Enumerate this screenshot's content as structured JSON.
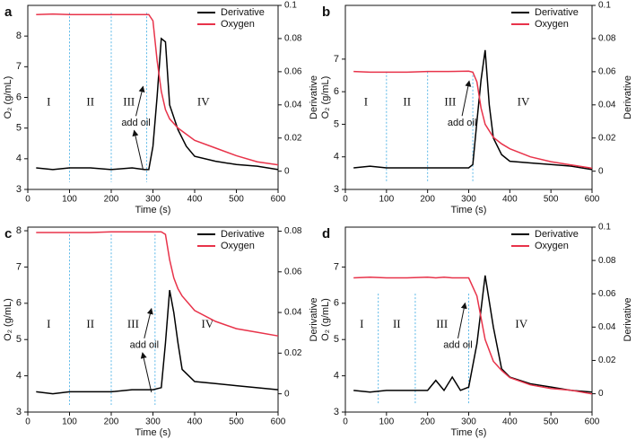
{
  "chart_data": [
    {
      "type": "line",
      "panel": "a",
      "x_label": "Time (s)",
      "y_label": "O₂ (g/mL)",
      "y2_label": "Derivative",
      "xlim": [
        0,
        600
      ],
      "xticks": [
        0,
        100,
        200,
        300,
        400,
        500,
        600
      ],
      "ylim": [
        3,
        9
      ],
      "yticks": [
        3,
        4,
        5,
        6,
        7,
        8
      ],
      "y2lim": [
        -0.011,
        0.1
      ],
      "y2ticks": [
        0,
        0.02,
        0.04,
        0.06,
        0.08,
        0.1
      ],
      "phase_lines": [
        100,
        200,
        285
      ],
      "phases": [
        "I",
        "II",
        "III",
        "IV"
      ],
      "annotation": "add oil",
      "x": [
        20,
        60,
        100,
        150,
        200,
        250,
        280,
        290,
        300,
        310,
        320,
        330,
        340,
        360,
        380,
        400,
        450,
        500,
        550,
        600
      ],
      "series": [
        {
          "name": "Derivative",
          "color": "#000000",
          "axis": "y2",
          "values": [
            0.002,
            0.001,
            0.002,
            0.002,
            0.001,
            0.002,
            0.001,
            0.001,
            0.015,
            0.045,
            0.08,
            0.078,
            0.04,
            0.025,
            0.015,
            0.009,
            0.006,
            0.004,
            0.003,
            0.001
          ]
        },
        {
          "name": "Oxygen",
          "color": "#e8334a",
          "values": [
            8.7,
            8.72,
            8.7,
            8.7,
            8.7,
            8.7,
            8.7,
            8.7,
            8.5,
            7.2,
            6.2,
            5.6,
            5.3,
            5.0,
            4.8,
            4.6,
            4.35,
            4.1,
            3.9,
            3.8
          ]
        }
      ]
    },
    {
      "type": "line",
      "panel": "b",
      "x_label": "Time (s)",
      "y_label": "O₂ (g/mL)",
      "y2_label": "Derivative",
      "xlim": [
        0,
        600
      ],
      "xticks": [
        0,
        100,
        200,
        300,
        400,
        500,
        600
      ],
      "ylim": [
        3,
        8.65
      ],
      "yticks": [
        3,
        4,
        5,
        6,
        7
      ],
      "y2lim": [
        -0.011,
        0.1
      ],
      "y2ticks": [
        0,
        0.02,
        0.04,
        0.06,
        0.08,
        0.1
      ],
      "phase_lines": [
        100,
        200,
        310
      ],
      "phases": [
        "I",
        "II",
        "III",
        "IV"
      ],
      "annotation": "add oil",
      "x": [
        20,
        60,
        100,
        150,
        200,
        250,
        300,
        310,
        320,
        330,
        340,
        350,
        360,
        380,
        400,
        450,
        500,
        550,
        600
      ],
      "series": [
        {
          "name": "Derivative",
          "color": "#000000",
          "axis": "y2",
          "values": [
            0.002,
            0.003,
            0.002,
            0.002,
            0.002,
            0.002,
            0.002,
            0.004,
            0.03,
            0.055,
            0.073,
            0.04,
            0.02,
            0.01,
            0.006,
            0.005,
            0.004,
            0.003,
            0.001
          ]
        },
        {
          "name": "Oxygen",
          "color": "#e8334a",
          "values": [
            6.62,
            6.6,
            6.6,
            6.6,
            6.62,
            6.62,
            6.63,
            6.6,
            6.3,
            5.5,
            5.0,
            4.8,
            4.6,
            4.4,
            4.25,
            4.0,
            3.85,
            3.75,
            3.65
          ]
        }
      ]
    },
    {
      "type": "line",
      "panel": "c",
      "x_label": "Time (s)",
      "y_label": "O₂ (g/mL)",
      "y2_label": "Derivative",
      "xlim": [
        0,
        600
      ],
      "xticks": [
        0,
        100,
        200,
        300,
        400,
        500,
        600
      ],
      "ylim": [
        3,
        8.1
      ],
      "yticks": [
        3,
        4,
        5,
        6,
        7,
        8
      ],
      "y2lim": [
        -0.009,
        0.082
      ],
      "y2ticks": [
        0,
        0.02,
        0.04,
        0.06,
        0.08
      ],
      "phase_lines": [
        100,
        200,
        305
      ],
      "phases": [
        "I",
        "II",
        "III",
        "IV"
      ],
      "annotation": "add oil",
      "x": [
        20,
        60,
        100,
        150,
        200,
        250,
        300,
        320,
        330,
        340,
        350,
        360,
        370,
        400,
        450,
        500,
        550,
        600
      ],
      "series": [
        {
          "name": "Derivative",
          "color": "#000000",
          "axis": "y2",
          "values": [
            0.001,
            0.0,
            0.001,
            0.001,
            0.001,
            0.002,
            0.002,
            0.003,
            0.025,
            0.051,
            0.04,
            0.025,
            0.012,
            0.006,
            0.005,
            0.004,
            0.003,
            0.002
          ]
        },
        {
          "name": "Oxygen",
          "color": "#e8334a",
          "values": [
            7.95,
            7.95,
            7.95,
            7.95,
            7.97,
            7.97,
            7.97,
            7.97,
            7.9,
            7.2,
            6.7,
            6.4,
            6.2,
            5.8,
            5.5,
            5.3,
            5.2,
            5.1
          ]
        }
      ]
    },
    {
      "type": "line",
      "panel": "d",
      "x_label": "Time (s)",
      "y_label": "O₂ (g/mL)",
      "y2_label": "Derivative",
      "xlim": [
        0,
        600
      ],
      "xticks": [
        0,
        100,
        200,
        300,
        400,
        500,
        600
      ],
      "ylim": [
        3,
        8.1
      ],
      "yticks": [
        3,
        4,
        5,
        6,
        7
      ],
      "y2lim": [
        -0.011,
        0.1
      ],
      "y2ticks": [
        0,
        0.02,
        0.04,
        0.06,
        0.08,
        0.1
      ],
      "phase_lines": [
        80,
        170,
        300
      ],
      "phases": [
        "I",
        "II",
        "III",
        "IV"
      ],
      "annotation": "add oil",
      "x": [
        20,
        60,
        100,
        150,
        200,
        220,
        240,
        260,
        280,
        300,
        320,
        340,
        360,
        380,
        400,
        450,
        500,
        550,
        600
      ],
      "series": [
        {
          "name": "Derivative",
          "color": "#000000",
          "axis": "y2",
          "values": [
            0.002,
            0.001,
            0.002,
            0.002,
            0.002,
            0.008,
            0.002,
            0.01,
            0.002,
            0.004,
            0.03,
            0.071,
            0.04,
            0.015,
            0.01,
            0.006,
            0.004,
            0.002,
            0.001
          ]
        },
        {
          "name": "Oxygen",
          "color": "#e8334a",
          "values": [
            6.7,
            6.72,
            6.7,
            6.7,
            6.72,
            6.7,
            6.72,
            6.7,
            6.7,
            6.7,
            6.2,
            5.0,
            4.4,
            4.15,
            3.95,
            3.75,
            3.65,
            3.6,
            3.5
          ]
        }
      ]
    }
  ]
}
